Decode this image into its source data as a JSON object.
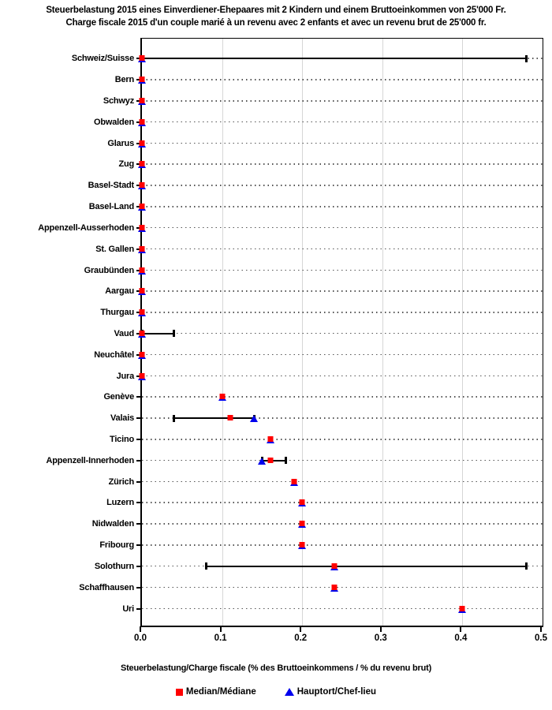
{
  "chart_data": {
    "type": "scatter",
    "title": "Steuerbelastung 2015 eines Einverdiener-Ehepaares mit 2 Kindern und einem Bruttoeinkommen von 25'000 Fr.",
    "subtitle": "Charge fiscale 2015 d'un couple marié à un revenu avec 2 enfants et avec un revenu brut de 25'000 fr.",
    "xlabel": "Steuerbelastung/Charge fiscale (% des Bruttoeinkommens / % du revenu brut)",
    "xlim": [
      0.0,
      0.5
    ],
    "xticks": [
      "0.0",
      "0.1",
      "0.2",
      "0.3",
      "0.4",
      "0.5"
    ],
    "grid": {
      "vertical_ticks": [
        0.1,
        0.2,
        0.3,
        0.4
      ],
      "horizontal_style": "dotted-per-row"
    },
    "legend_position": "bottom-center",
    "colors": {
      "median": "#ff0000",
      "hauptort": "#0000ee",
      "range_line": "#000000",
      "vertical_gridline": "#d6d6d6",
      "dotted_gridline": "#555555",
      "frame": "#000000"
    },
    "legend": [
      {
        "label": "Median/Médiane",
        "marker": "square",
        "color": "#ff0000"
      },
      {
        "label": "Hauptort/Chef-lieu",
        "marker": "triangle",
        "color": "#0000ee"
      }
    ],
    "rows": [
      {
        "label": "Schweiz/Suisse",
        "median": 0.0,
        "hauptort": 0.0,
        "range_min": 0.0,
        "range_max": 0.48
      },
      {
        "label": "Bern",
        "median": 0.0,
        "hauptort": 0.0,
        "range_min": null,
        "range_max": null
      },
      {
        "label": "Schwyz",
        "median": 0.0,
        "hauptort": 0.0,
        "range_min": null,
        "range_max": null
      },
      {
        "label": "Obwalden",
        "median": 0.0,
        "hauptort": 0.0,
        "range_min": null,
        "range_max": null
      },
      {
        "label": "Glarus",
        "median": 0.0,
        "hauptort": 0.0,
        "range_min": null,
        "range_max": null
      },
      {
        "label": "Zug",
        "median": 0.0,
        "hauptort": 0.0,
        "range_min": null,
        "range_max": null
      },
      {
        "label": "Basel-Stadt",
        "median": 0.0,
        "hauptort": 0.0,
        "range_min": null,
        "range_max": null
      },
      {
        "label": "Basel-Land",
        "median": 0.0,
        "hauptort": 0.0,
        "range_min": null,
        "range_max": null
      },
      {
        "label": "Appenzell-Ausserhoden",
        "median": 0.0,
        "hauptort": 0.0,
        "range_min": null,
        "range_max": null
      },
      {
        "label": "St. Gallen",
        "median": 0.0,
        "hauptort": 0.0,
        "range_min": null,
        "range_max": null
      },
      {
        "label": "Graubünden",
        "median": 0.0,
        "hauptort": 0.0,
        "range_min": null,
        "range_max": null
      },
      {
        "label": "Aargau",
        "median": 0.0,
        "hauptort": 0.0,
        "range_min": null,
        "range_max": null
      },
      {
        "label": "Thurgau",
        "median": 0.0,
        "hauptort": 0.0,
        "range_min": null,
        "range_max": null
      },
      {
        "label": "Vaud",
        "median": 0.0,
        "hauptort": 0.0,
        "range_min": 0.0,
        "range_max": 0.04
      },
      {
        "label": "Neuchâtel",
        "median": 0.0,
        "hauptort": 0.0,
        "range_min": null,
        "range_max": null
      },
      {
        "label": "Jura",
        "median": 0.0,
        "hauptort": 0.0,
        "range_min": null,
        "range_max": null
      },
      {
        "label": "Genève",
        "median": 0.1,
        "hauptort": 0.1,
        "range_min": null,
        "range_max": null
      },
      {
        "label": "Valais",
        "median": 0.11,
        "hauptort": 0.14,
        "range_min": 0.04,
        "range_max": 0.14
      },
      {
        "label": "Ticino",
        "median": 0.16,
        "hauptort": 0.16,
        "range_min": null,
        "range_max": null
      },
      {
        "label": "Appenzell-Innerhoden",
        "median": 0.16,
        "hauptort": 0.15,
        "range_min": 0.15,
        "range_max": 0.18
      },
      {
        "label": "Zürich",
        "median": 0.19,
        "hauptort": 0.19,
        "range_min": null,
        "range_max": null
      },
      {
        "label": "Luzern",
        "median": 0.2,
        "hauptort": 0.2,
        "range_min": null,
        "range_max": null
      },
      {
        "label": "Nidwalden",
        "median": 0.2,
        "hauptort": 0.2,
        "range_min": null,
        "range_max": null
      },
      {
        "label": "Fribourg",
        "median": 0.2,
        "hauptort": 0.2,
        "range_min": null,
        "range_max": null
      },
      {
        "label": "Solothurn",
        "median": 0.24,
        "hauptort": 0.24,
        "range_min": 0.08,
        "range_max": 0.48
      },
      {
        "label": "Schaffhausen",
        "median": 0.24,
        "hauptort": 0.24,
        "range_min": null,
        "range_max": null
      },
      {
        "label": "Uri",
        "median": 0.4,
        "hauptort": 0.4,
        "range_min": null,
        "range_max": null
      }
    ]
  }
}
